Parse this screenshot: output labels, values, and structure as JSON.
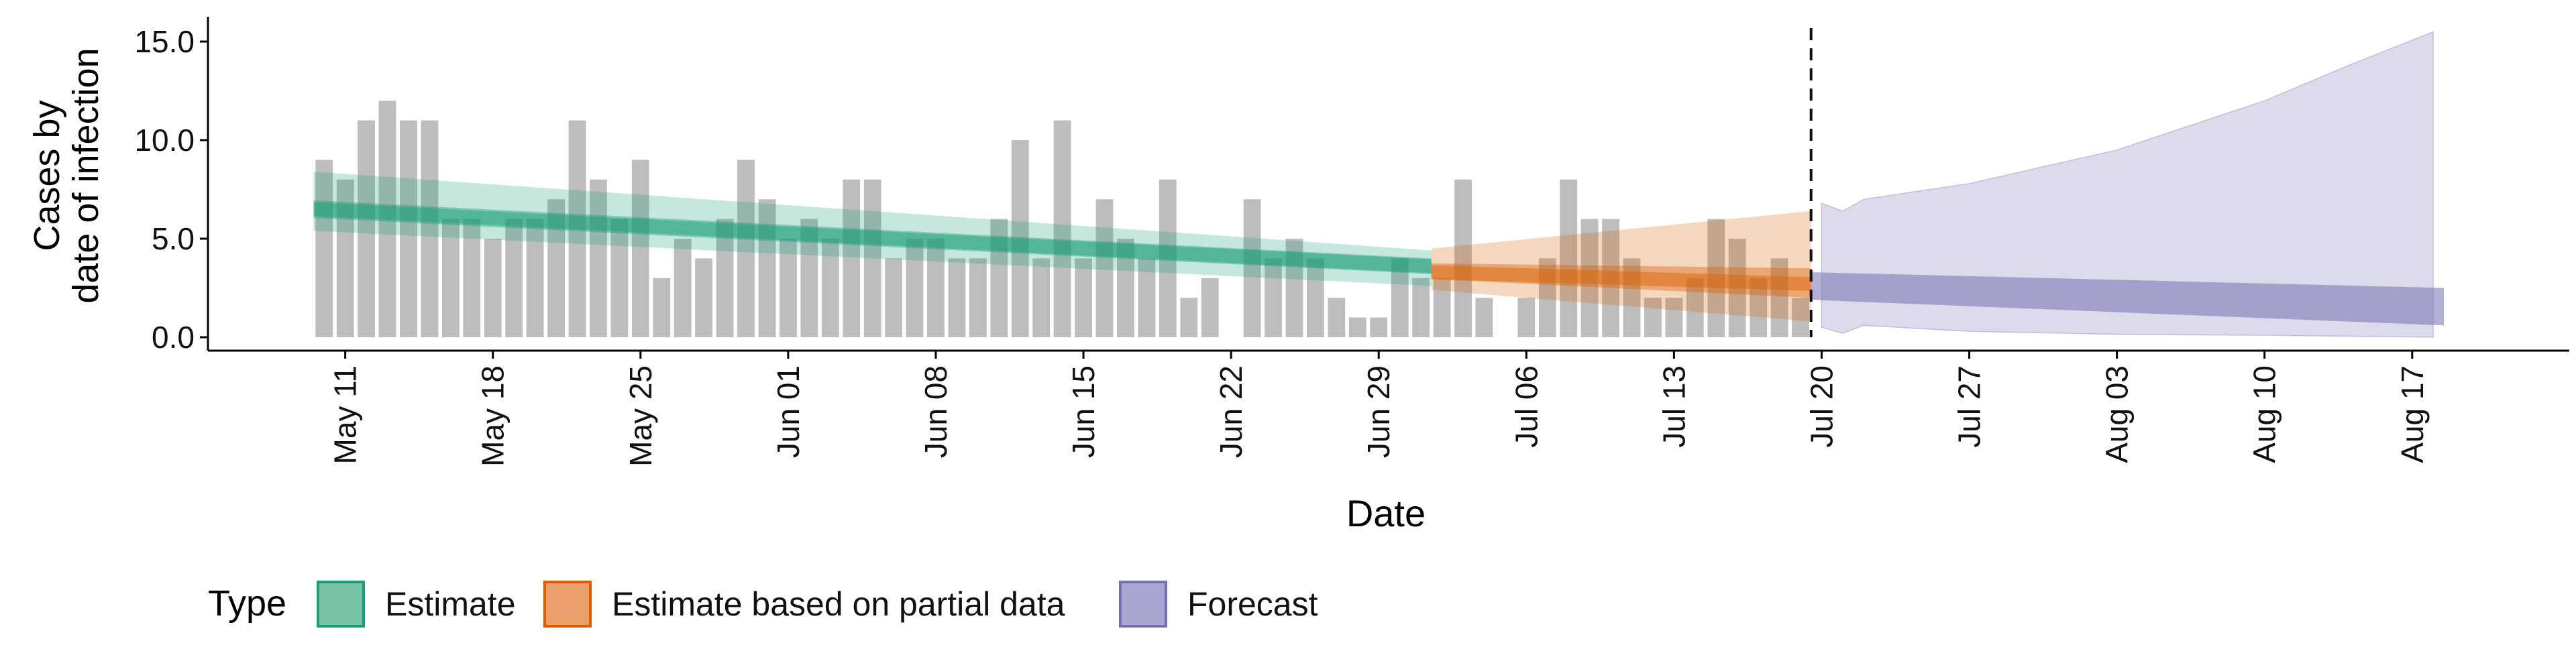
{
  "chart_data": {
    "type": "bar",
    "title": "",
    "xlabel": "Date",
    "ylabel_lines": [
      "Cases by",
      "date of infection"
    ],
    "ylim": [
      0,
      16
    ],
    "y_ticks": [
      "0.0",
      "5.0",
      "10.0",
      "15.0"
    ],
    "y_tick_values": [
      0,
      5,
      10,
      15
    ],
    "x_start_date": "2020-05-05",
    "x_end_date": "2020-08-22",
    "x_tick_dates": [
      "2020-05-11",
      "2020-05-18",
      "2020-05-25",
      "2020-06-01",
      "2020-06-08",
      "2020-06-15",
      "2020-06-22",
      "2020-06-29",
      "2020-07-06",
      "2020-07-13",
      "2020-07-20",
      "2020-07-27",
      "2020-08-03",
      "2020-08-10",
      "2020-08-17"
    ],
    "x_ticks": [
      "May 11",
      "May 18",
      "May 25",
      "Jun 01",
      "Jun 08",
      "Jun 15",
      "Jun 22",
      "Jun 29",
      "Jul 06",
      "Jul 13",
      "Jul 20",
      "Jul 27",
      "Aug 03",
      "Aug 10",
      "Aug 17"
    ],
    "forecast_start_marker": "2020-07-19",
    "grid": false,
    "legend": {
      "title": "Type",
      "position": "bottom-left",
      "entries": [
        {
          "label": "Estimate",
          "fill": "#7ac3a6",
          "border": "#1b9e77"
        },
        {
          "label": "Estimate based on partial data",
          "fill": "#eba06b",
          "border": "#d95f02"
        },
        {
          "label": "Forecast",
          "fill": "#aaa6d3",
          "border": "#7570b3"
        }
      ]
    },
    "colors": {
      "bars": "#bdbdbd",
      "estimate": "#1b9e77",
      "partial": "#d95f02",
      "forecast": "#7570b3",
      "axis": "#000000"
    },
    "observed_cases": {
      "start_date": "2020-05-10",
      "values": [
        9,
        8,
        11,
        12,
        11,
        11,
        6,
        6,
        5,
        6,
        6,
        7,
        11,
        8,
        6,
        9,
        3,
        5,
        4,
        6,
        9,
        7,
        5,
        6,
        5,
        8,
        8,
        4,
        5,
        5,
        4,
        4,
        6,
        10,
        4,
        11,
        4,
        7,
        5,
        4,
        8,
        2,
        3,
        0,
        7,
        4,
        5,
        4,
        2,
        1,
        1,
        4,
        3,
        3,
        8,
        2,
        0,
        2,
        4,
        8,
        6,
        6,
        4,
        2,
        2,
        3,
        6,
        5,
        3,
        4,
        2
      ]
    },
    "series": [
      {
        "name": "Estimate",
        "start_date": "2020-05-10",
        "end_date": "2020-07-01",
        "median": [
          6.5,
          3.6
        ],
        "inner": [
          [
            6.05,
            6.95
          ],
          [
            3.2,
            4.0
          ]
        ],
        "outer": [
          [
            5.4,
            8.4
          ],
          [
            2.6,
            4.4
          ]
        ]
      },
      {
        "name": "Estimate based on partial data",
        "start_date": "2020-07-02",
        "end_date": "2020-07-19",
        "median": [
          3.3,
          2.7
        ],
        "inner": [
          [
            2.95,
            3.75
          ],
          [
            2.0,
            3.5
          ]
        ],
        "outer": [
          [
            2.4,
            4.5
          ],
          [
            0.8,
            6.4
          ]
        ]
      },
      {
        "name": "Forecast",
        "start_date": "2020-07-20",
        "end_date": "2020-08-18",
        "median": [
          2.4,
          1.5
        ],
        "inner": [
          [
            1.9,
            3.3
          ],
          [
            0.6,
            2.5
          ]
        ],
        "outer": [
          {
            "date": "2020-07-20",
            "low": 0.5,
            "high": 6.8
          },
          {
            "date": "2020-07-21",
            "low": 0.2,
            "high": 6.4
          },
          {
            "date": "2020-07-22",
            "low": 0.6,
            "high": 7.0
          },
          {
            "date": "2020-07-27",
            "low": 0.3,
            "high": 7.8
          },
          {
            "date": "2020-08-03",
            "low": 0.15,
            "high": 9.5
          },
          {
            "date": "2020-08-10",
            "low": 0.1,
            "high": 12.0
          },
          {
            "date": "2020-08-14",
            "low": 0.05,
            "high": 13.8
          },
          {
            "date": "2020-08-18",
            "low": 0.0,
            "high": 15.5
          }
        ]
      }
    ]
  }
}
